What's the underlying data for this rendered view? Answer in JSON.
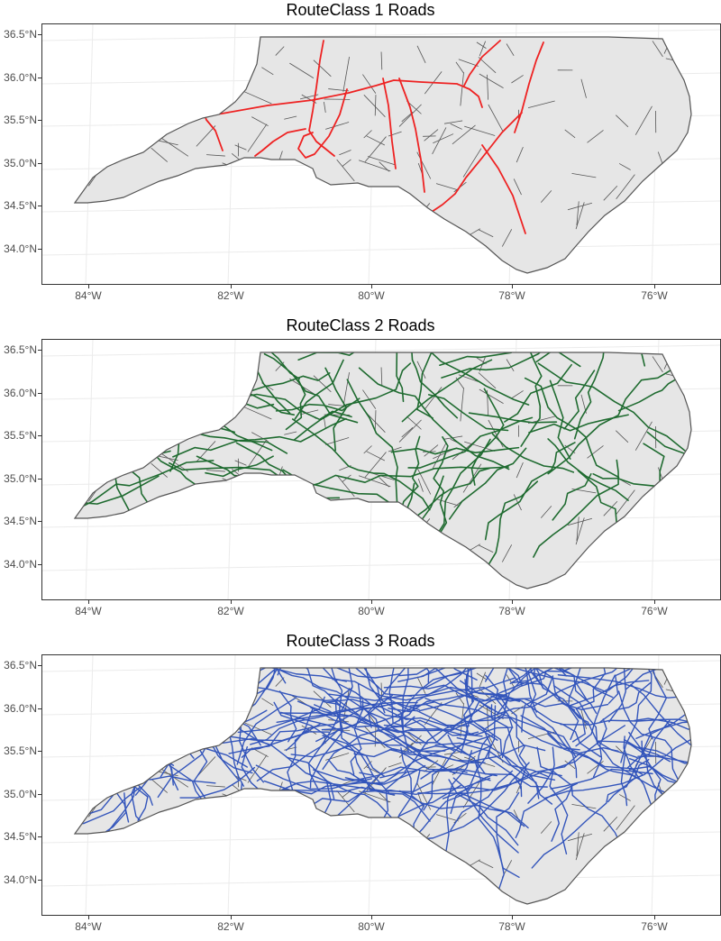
{
  "panels": [
    {
      "title": "RouteClass 1 Roads",
      "road_color": "#ee2222",
      "road_class": 1
    },
    {
      "title": "RouteClass 2 Roads",
      "road_color": "#1f6b30",
      "road_class": 2
    },
    {
      "title": "RouteClass 3 Roads",
      "road_color": "#3355bb",
      "road_class": 3
    }
  ],
  "y_axis": {
    "ticks": [
      "36.5°N",
      "36.0°N",
      "35.5°N",
      "35.0°N",
      "34.5°N",
      "34.0°N"
    ]
  },
  "x_axis": {
    "ticks": [
      "84°W",
      "82°W",
      "80°W",
      "78°W",
      "76°W"
    ]
  },
  "colors": {
    "land": "#e6e6e6",
    "county_border": "#555555",
    "grid": "#ebebeb"
  }
}
